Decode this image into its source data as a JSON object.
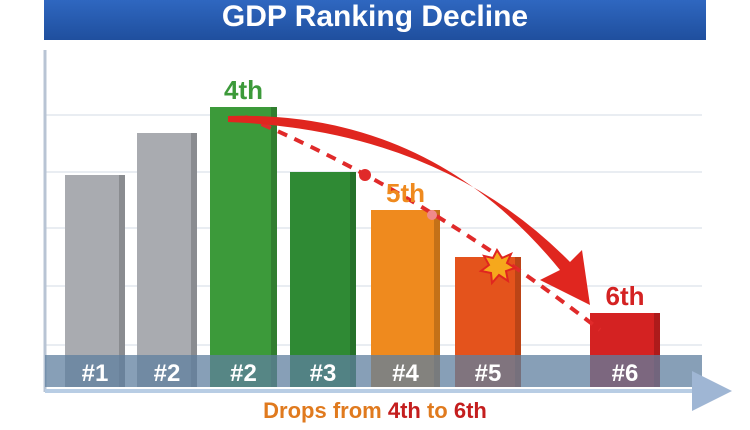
{
  "chart_data": {
    "type": "bar",
    "title": "GDP Ranking Decline",
    "categories": [
      "#1",
      "#2",
      "#2",
      "#3",
      "#4",
      "#5",
      "#6"
    ],
    "values": [
      212,
      254,
      280,
      215,
      177,
      130,
      74
    ],
    "colors": [
      "#a9abb0",
      "#a9abb0",
      "#3c9a3a",
      "#2f8a34",
      "#ef8a1e",
      "#e4531c",
      "#d42222"
    ],
    "annotations": [
      {
        "text": "4th",
        "bar": 2,
        "color": "#3c9a3a"
      },
      {
        "text": "5th",
        "bar": 4,
        "color": "#ef8a1e"
      },
      {
        "text": "6th",
        "bar": 6,
        "color": "#d42222"
      }
    ],
    "caption": {
      "prefix": "Drops from ",
      "from": "4th",
      "middle": " to ",
      "to": "6th"
    },
    "ylim": [
      0,
      330
    ],
    "grid": true
  }
}
